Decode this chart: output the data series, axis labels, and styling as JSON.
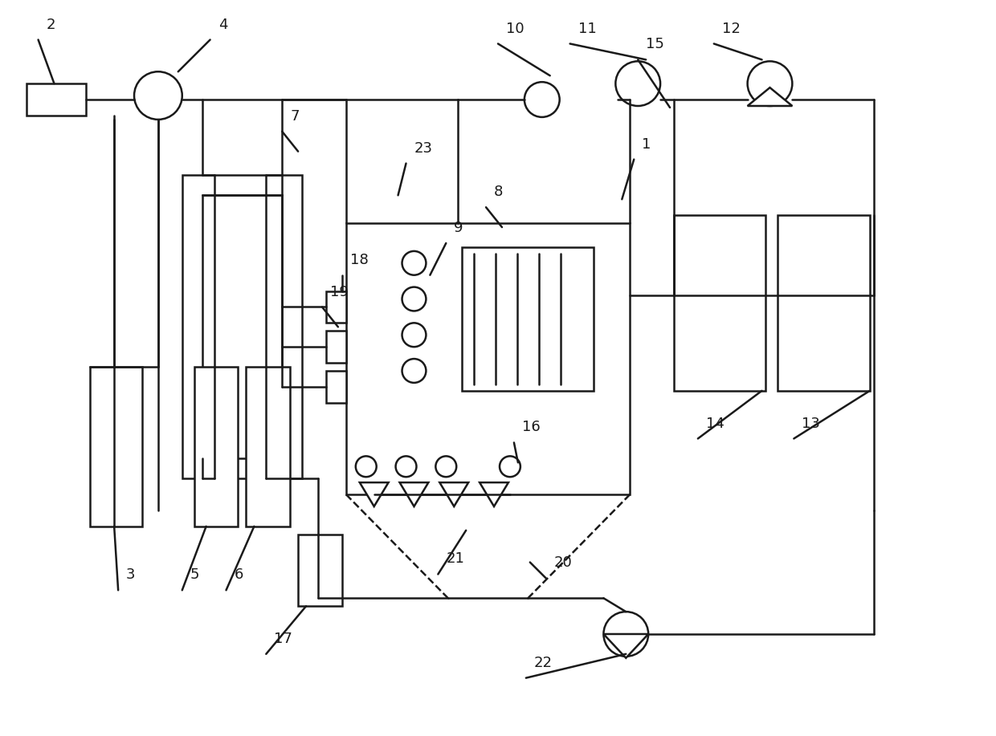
{
  "bg_color": "#ffffff",
  "line_color": "#1a1a1a",
  "line_width": 1.8,
  "fig_width": 12.4,
  "fig_height": 9.17,
  "dpi": 100
}
